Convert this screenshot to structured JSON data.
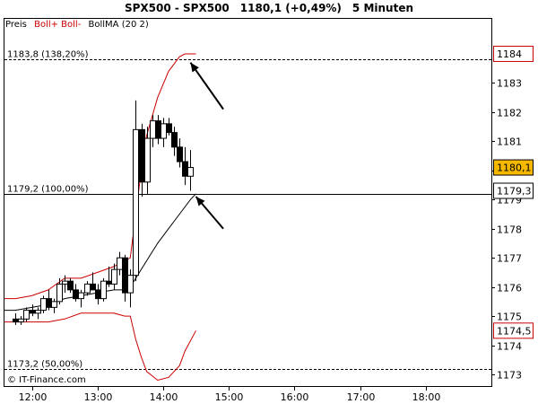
{
  "header": {
    "symbol": "SPX500 - SPX500",
    "price": "1180,1 (+0,49%)",
    "interval": "5 Minuten"
  },
  "legend": [
    {
      "label": "Preis",
      "color": "#000000"
    },
    {
      "label": "Boll+ Boll-",
      "color": "#cc0000"
    },
    {
      "label": "BollMA (20 2)",
      "color": "#000000"
    }
  ],
  "watermark": "© IT-Finance.com",
  "chart_data": {
    "type": "candlestick",
    "ylim": [
      1172.6,
      1185.2
    ],
    "y_ticks": [
      1173,
      1174,
      1175,
      1176,
      1177,
      1178,
      1179,
      1180,
      1181,
      1182,
      1183
    ],
    "xlim": [
      "11:35",
      "19:00"
    ],
    "x_ticks": [
      "12:00",
      "13:00",
      "14:00",
      "15:00",
      "16:00",
      "17:00",
      "18:00"
    ],
    "price_badges": [
      {
        "value": 1184,
        "label": "1184",
        "color": "#cc0000",
        "fill": "#ffffff"
      },
      {
        "value": 1180.1,
        "label": "1180,1",
        "color": "#000000",
        "fill": "#f5b800"
      },
      {
        "value": 1179.3,
        "label": "1179,3",
        "color": "#000000",
        "fill": "#ffffff"
      },
      {
        "value": 1174.5,
        "label": "1174,5",
        "color": "#cc0000",
        "fill": "#ffffff"
      }
    ],
    "levels": [
      {
        "value": 1183.8,
        "label": "1183,8 (138,20%)",
        "style": "dashed"
      },
      {
        "value": 1179.2,
        "label": "1179,2 (100,00%)",
        "style": "solid"
      },
      {
        "value": 1173.2,
        "label": "1173,2 (50,00%)",
        "style": "dashed"
      }
    ],
    "candles": [
      {
        "t": "11:45",
        "o": 1174.9,
        "h": 1175.1,
        "l": 1174.7,
        "c": 1174.8
      },
      {
        "t": "11:50",
        "o": 1174.8,
        "h": 1175.0,
        "l": 1174.7,
        "c": 1174.9
      },
      {
        "t": "11:55",
        "o": 1174.9,
        "h": 1175.3,
        "l": 1174.8,
        "c": 1175.2
      },
      {
        "t": "12:00",
        "o": 1175.2,
        "h": 1175.4,
        "l": 1175.0,
        "c": 1175.1
      },
      {
        "t": "12:05",
        "o": 1175.1,
        "h": 1175.3,
        "l": 1174.9,
        "c": 1175.2
      },
      {
        "t": "12:10",
        "o": 1175.2,
        "h": 1175.7,
        "l": 1175.1,
        "c": 1175.6
      },
      {
        "t": "12:15",
        "o": 1175.6,
        "h": 1175.9,
        "l": 1175.2,
        "c": 1175.3
      },
      {
        "t": "12:20",
        "o": 1175.3,
        "h": 1175.6,
        "l": 1175.1,
        "c": 1175.5
      },
      {
        "t": "12:25",
        "o": 1175.5,
        "h": 1176.3,
        "l": 1175.4,
        "c": 1176.1
      },
      {
        "t": "12:30",
        "o": 1176.1,
        "h": 1176.4,
        "l": 1175.8,
        "c": 1176.2
      },
      {
        "t": "12:35",
        "o": 1176.2,
        "h": 1176.3,
        "l": 1175.8,
        "c": 1175.9
      },
      {
        "t": "12:40",
        "o": 1175.9,
        "h": 1176.1,
        "l": 1175.5,
        "c": 1175.6
      },
      {
        "t": "12:45",
        "o": 1175.6,
        "h": 1175.9,
        "l": 1175.3,
        "c": 1175.8
      },
      {
        "t": "12:50",
        "o": 1175.8,
        "h": 1176.2,
        "l": 1175.7,
        "c": 1176.1
      },
      {
        "t": "12:55",
        "o": 1176.1,
        "h": 1176.5,
        "l": 1175.9,
        "c": 1175.9
      },
      {
        "t": "13:00",
        "o": 1175.9,
        "h": 1176.1,
        "l": 1175.4,
        "c": 1175.6
      },
      {
        "t": "13:05",
        "o": 1175.6,
        "h": 1176.3,
        "l": 1175.5,
        "c": 1176.2
      },
      {
        "t": "13:10",
        "o": 1176.2,
        "h": 1176.7,
        "l": 1176.0,
        "c": 1176.1
      },
      {
        "t": "13:15",
        "o": 1176.1,
        "h": 1176.8,
        "l": 1175.9,
        "c": 1176.6
      },
      {
        "t": "13:20",
        "o": 1176.6,
        "h": 1177.2,
        "l": 1176.4,
        "c": 1177.0
      },
      {
        "t": "13:25",
        "o": 1177.0,
        "h": 1177.1,
        "l": 1175.5,
        "c": 1175.8
      },
      {
        "t": "13:30",
        "o": 1175.8,
        "h": 1176.6,
        "l": 1175.3,
        "c": 1176.4
      },
      {
        "t": "13:35",
        "o": 1176.4,
        "h": 1182.4,
        "l": 1176.2,
        "c": 1181.4
      },
      {
        "t": "13:40",
        "o": 1181.4,
        "h": 1181.6,
        "l": 1179.1,
        "c": 1179.6
      },
      {
        "t": "13:45",
        "o": 1179.6,
        "h": 1181.5,
        "l": 1179.2,
        "c": 1181.1
      },
      {
        "t": "13:50",
        "o": 1181.1,
        "h": 1181.9,
        "l": 1180.8,
        "c": 1181.7
      },
      {
        "t": "13:55",
        "o": 1181.7,
        "h": 1181.9,
        "l": 1180.9,
        "c": 1181.1
      },
      {
        "t": "14:00",
        "o": 1181.1,
        "h": 1181.8,
        "l": 1180.8,
        "c": 1181.6
      },
      {
        "t": "14:05",
        "o": 1181.6,
        "h": 1181.8,
        "l": 1181.2,
        "c": 1181.3
      },
      {
        "t": "14:10",
        "o": 1181.3,
        "h": 1181.5,
        "l": 1180.5,
        "c": 1180.8
      },
      {
        "t": "14:15",
        "o": 1180.8,
        "h": 1181.1,
        "l": 1180.1,
        "c": 1180.3
      },
      {
        "t": "14:20",
        "o": 1180.3,
        "h": 1180.8,
        "l": 1179.5,
        "c": 1179.8
      },
      {
        "t": "14:25",
        "o": 1179.8,
        "h": 1180.7,
        "l": 1179.3,
        "c": 1180.1
      }
    ],
    "boll_upper": [
      [
        "11:35",
        1175.6
      ],
      [
        "11:45",
        1175.6
      ],
      [
        "12:00",
        1175.7
      ],
      [
        "12:15",
        1175.9
      ],
      [
        "12:30",
        1176.3
      ],
      [
        "12:45",
        1176.3
      ],
      [
        "13:00",
        1176.5
      ],
      [
        "13:15",
        1176.7
      ],
      [
        "13:25",
        1176.9
      ],
      [
        "13:30",
        1177.0
      ],
      [
        "13:35",
        1178.5
      ],
      [
        "13:40",
        1180.0
      ],
      [
        "13:45",
        1181.2
      ],
      [
        "13:55",
        1182.5
      ],
      [
        "14:05",
        1183.4
      ],
      [
        "14:15",
        1183.9
      ],
      [
        "14:20",
        1184.0
      ],
      [
        "14:30",
        1184.0
      ]
    ],
    "boll_lower": [
      [
        "11:35",
        1174.8
      ],
      [
        "11:45",
        1174.8
      ],
      [
        "12:00",
        1174.8
      ],
      [
        "12:15",
        1174.8
      ],
      [
        "12:30",
        1174.9
      ],
      [
        "12:45",
        1175.1
      ],
      [
        "13:00",
        1175.1
      ],
      [
        "13:15",
        1175.1
      ],
      [
        "13:25",
        1175.0
      ],
      [
        "13:30",
        1175.0
      ],
      [
        "13:35",
        1174.2
      ],
      [
        "13:40",
        1173.6
      ],
      [
        "13:45",
        1173.1
      ],
      [
        "13:55",
        1172.8
      ],
      [
        "14:05",
        1172.9
      ],
      [
        "14:15",
        1173.3
      ],
      [
        "14:20",
        1173.8
      ],
      [
        "14:30",
        1174.5
      ]
    ],
    "boll_ma": [
      [
        "11:35",
        1175.2
      ],
      [
        "11:45",
        1175.2
      ],
      [
        "12:00",
        1175.3
      ],
      [
        "12:15",
        1175.4
      ],
      [
        "12:30",
        1175.6
      ],
      [
        "12:45",
        1175.7
      ],
      [
        "13:00",
        1175.8
      ],
      [
        "13:15",
        1175.9
      ],
      [
        "13:25",
        1175.9
      ],
      [
        "13:30",
        1176.0
      ],
      [
        "13:35",
        1176.3
      ],
      [
        "13:45",
        1176.9
      ],
      [
        "13:55",
        1177.5
      ],
      [
        "14:05",
        1178.0
      ],
      [
        "14:15",
        1178.5
      ],
      [
        "14:25",
        1179.0
      ],
      [
        "14:30",
        1179.2
      ]
    ],
    "arrows": [
      {
        "from": [
          "14:55",
          1182.1
        ],
        "to": [
          "14:25",
          1183.7
        ]
      },
      {
        "from": [
          "14:55",
          1178.0
        ],
        "to": [
          "14:30",
          1179.1
        ]
      }
    ]
  }
}
